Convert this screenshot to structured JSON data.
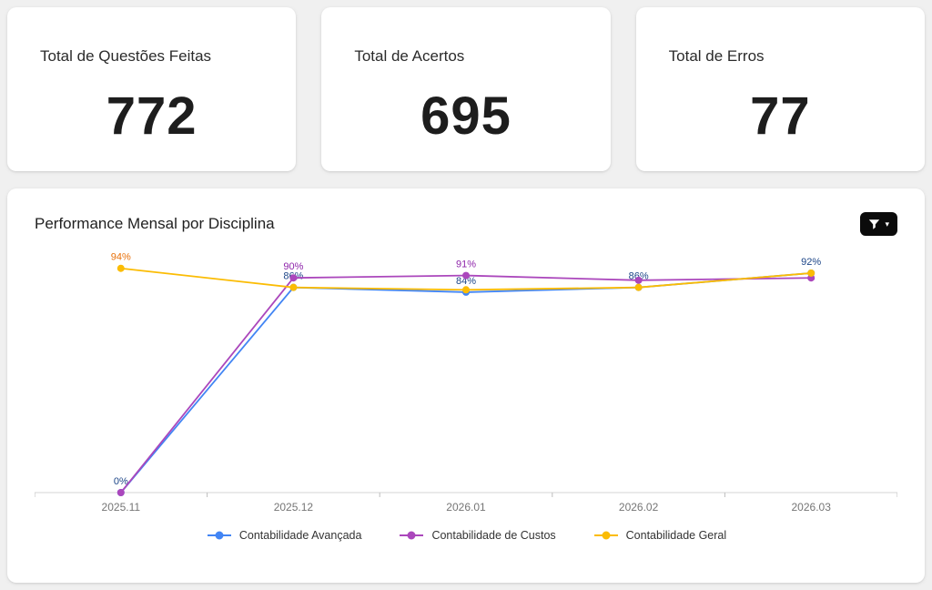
{
  "stats": [
    {
      "label": "Total de Questões Feitas",
      "value": "772"
    },
    {
      "label": "Total de Acertos",
      "value": "695"
    },
    {
      "label": "Total de Erros",
      "value": "77"
    }
  ],
  "chart": {
    "title": "Performance Mensal por Disciplina",
    "filter_caret": "▾"
  },
  "chart_data": {
    "type": "line",
    "title": "Performance Mensal por Disciplina",
    "categories": [
      "2025.11",
      "2025.12",
      "2026.01",
      "2026.02",
      "2026.03"
    ],
    "series": [
      {
        "name": "Contabilidade Avançada",
        "color": "#4285F4",
        "label_color": "#1c4587",
        "values": [
          0,
          86,
          84,
          86,
          92
        ],
        "labels": [
          "0%",
          "86%",
          "84%",
          "86%",
          "92%"
        ]
      },
      {
        "name": "Contabilidade de Custos",
        "color": "#AB47BC",
        "label_color": "#8E24AA",
        "values": [
          0,
          90,
          91,
          89,
          90
        ],
        "labels": [
          null,
          "90%",
          "91%",
          null,
          null
        ]
      },
      {
        "name": "Contabilidade Geral",
        "color": "#FBBC04",
        "label_color": "#E8710A",
        "values": [
          94,
          86,
          85,
          86,
          92
        ],
        "labels": [
          "94%",
          null,
          null,
          null,
          null
        ]
      }
    ],
    "ylim": [
      0,
      100
    ],
    "grid": false,
    "legend_position": "bottom"
  }
}
